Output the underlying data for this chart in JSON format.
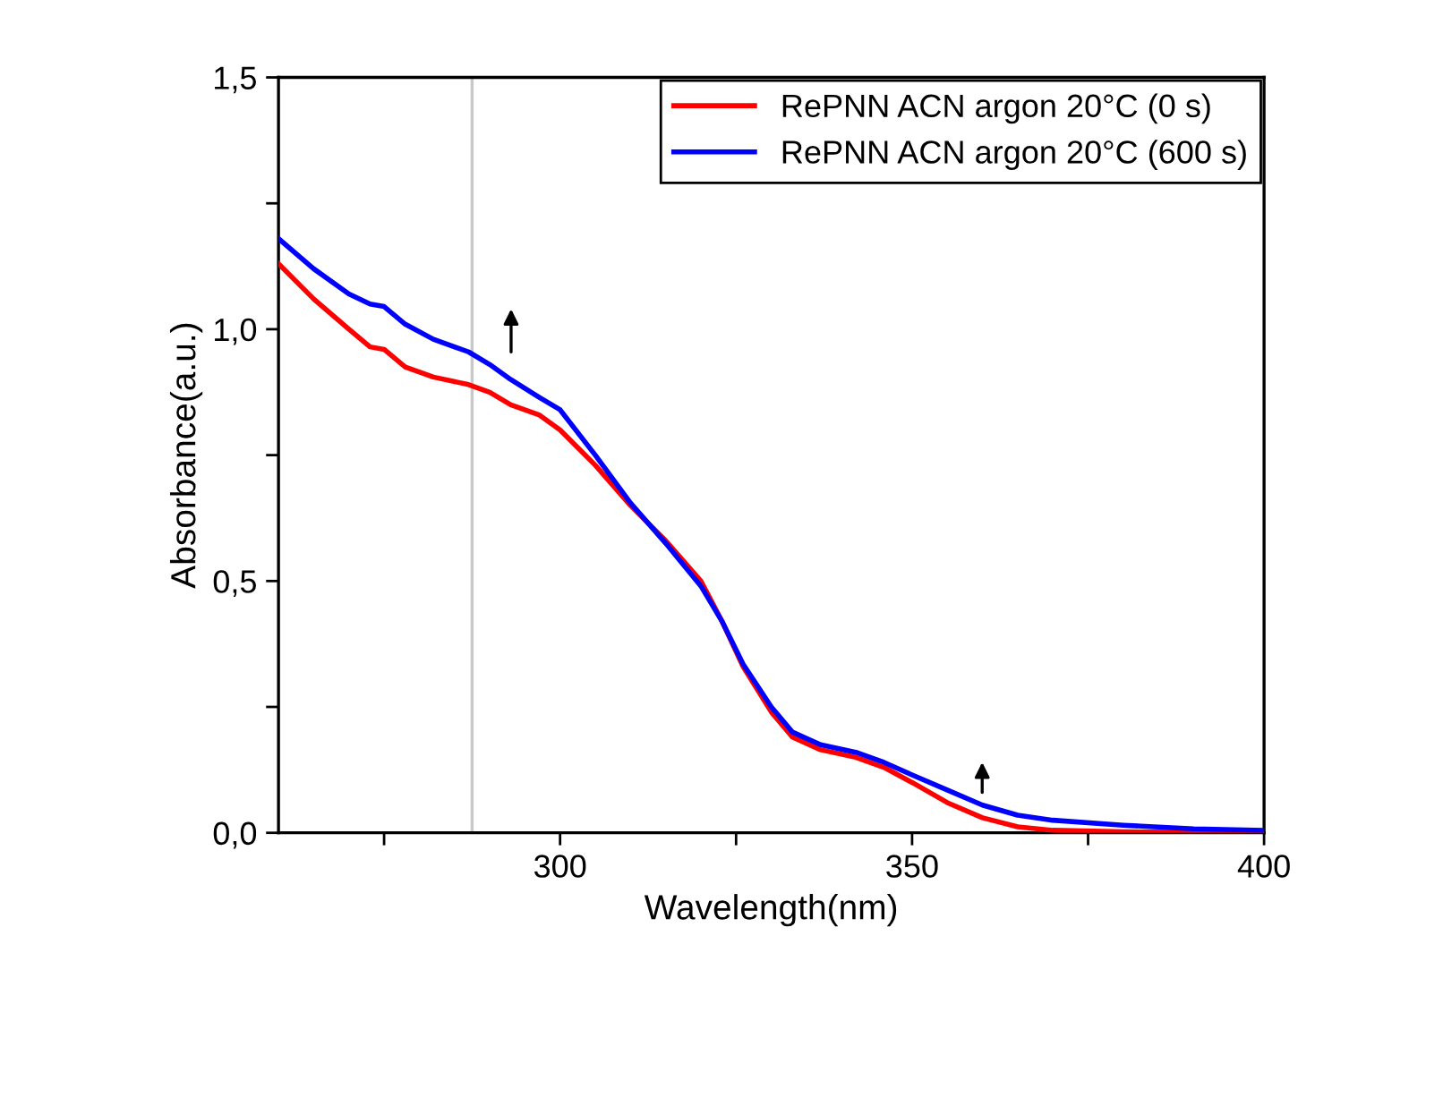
{
  "chart_data": {
    "type": "line",
    "xlabel": "Wavelength(nm)",
    "ylabel": "Absorbance(a.u.)",
    "xlim": [
      260,
      400
    ],
    "xticks": [
      {
        "value": 275,
        "label": null
      },
      300,
      {
        "value": 325,
        "label": null
      },
      350,
      {
        "value": 375,
        "label": null
      },
      400
    ],
    "ylim": [
      0,
      1.5
    ],
    "yticks": [
      {
        "value": 0,
        "label": "0,0"
      },
      {
        "value": 0.25,
        "label": null
      },
      {
        "value": 0.5,
        "label": "0,5"
      },
      {
        "value": 0.75,
        "label": null
      },
      {
        "value": 1.0,
        "label": "1,0"
      },
      {
        "value": 1.25,
        "label": null
      },
      {
        "value": 1.5,
        "label": "1,5"
      }
    ],
    "x": [
      260,
      265,
      270,
      273,
      275,
      278,
      282,
      287,
      290,
      293,
      297,
      300,
      305,
      310,
      315,
      320,
      323,
      326,
      330,
      333,
      337,
      342,
      346,
      350,
      355,
      360,
      365,
      370,
      380,
      390,
      400
    ],
    "series": [
      {
        "name": "RePNN ACN argon 20°C (0 s)",
        "color": "#ff0000",
        "values": [
          1.13,
          1.06,
          1.0,
          0.965,
          0.96,
          0.925,
          0.905,
          0.89,
          0.875,
          0.85,
          0.83,
          0.8,
          0.73,
          0.65,
          0.58,
          0.5,
          0.42,
          0.33,
          0.24,
          0.19,
          0.165,
          0.15,
          0.13,
          0.1,
          0.06,
          0.03,
          0.012,
          0.005,
          0.002,
          0.001,
          0.0
        ]
      },
      {
        "name": "RePNN ACN argon 20°C (600 s)",
        "color": "#0000ff",
        "values": [
          1.18,
          1.12,
          1.07,
          1.05,
          1.045,
          1.01,
          0.98,
          0.955,
          0.93,
          0.9,
          0.865,
          0.84,
          0.75,
          0.655,
          0.575,
          0.49,
          0.42,
          0.335,
          0.25,
          0.2,
          0.175,
          0.16,
          0.14,
          0.115,
          0.085,
          0.055,
          0.035,
          0.025,
          0.015,
          0.008,
          0.005
        ]
      }
    ],
    "ref_lines": [
      {
        "axis": "x",
        "value": 287.5,
        "label": null,
        "color": "#c8c8c8"
      }
    ],
    "legend": "top right",
    "grid": false,
    "marker": "none",
    "line_style": "solid"
  }
}
